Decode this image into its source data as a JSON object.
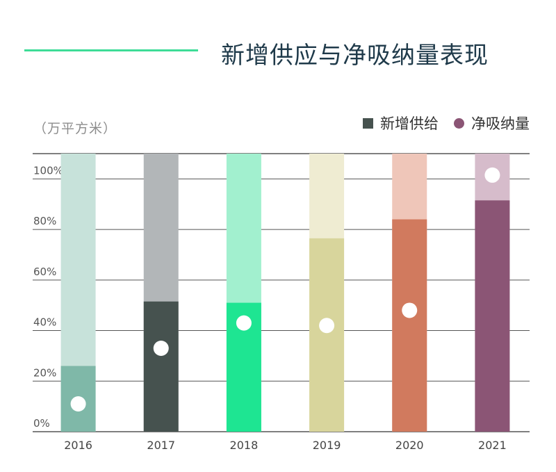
{
  "title": "新增供应与净吸纳量表现",
  "unit": "（万平方米）",
  "legend": {
    "supply": "新增供给",
    "absorption": "净吸纳量"
  },
  "colors": {
    "title_line": "#3ddc97",
    "legend_supply": "#46524f",
    "legend_absorption": "#8b5575"
  },
  "chart_data": {
    "type": "bar",
    "title": "新增供应与净吸纳量表现",
    "ylabel": "（万平方米）",
    "ylim": [
      0,
      110
    ],
    "yticks": [
      0,
      20,
      40,
      60,
      80,
      100
    ],
    "ytick_labels": [
      "0%",
      "20%",
      "40%",
      "60%",
      "80%",
      "100%"
    ],
    "grid": true,
    "legend_position": "top-right",
    "categories": [
      "2016",
      "2017",
      "2018",
      "2019",
      "2020",
      "2021"
    ],
    "series": [
      {
        "name": "新增供给",
        "marker": "bar",
        "values": [
          26,
          51.5,
          51,
          76.5,
          84,
          91.5
        ]
      },
      {
        "name": "净吸纳量",
        "marker": "dot",
        "values": [
          11,
          33,
          43,
          42,
          48,
          101.5
        ]
      }
    ],
    "bar_colors": {
      "fill": [
        "#7fb8a8",
        "#46524f",
        "#1ee592",
        "#d8d59c",
        "#d17a5e",
        "#8b5575"
      ],
      "background": [
        "#c7e2da",
        "#b2b6b8",
        "#a2f0cf",
        "#efecd2",
        "#efc6b9",
        "#d6bccb"
      ]
    }
  }
}
